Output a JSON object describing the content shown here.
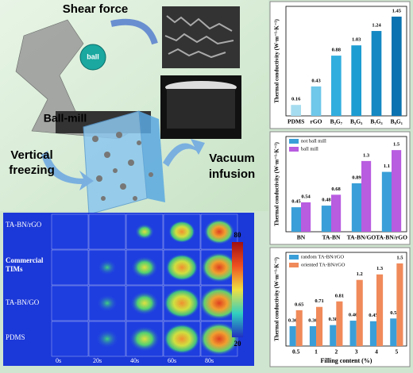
{
  "schematic": {
    "labels": [
      "Shear force",
      "ball",
      "Ball-mill",
      "Vertical",
      "freezing",
      "Vacuum",
      "infusion"
    ]
  },
  "thermal_map": {
    "samples": [
      "TA-BN/rGO",
      "Commercial",
      "TIMs",
      "TA-BN/GO",
      "PDMS"
    ],
    "times": [
      "0s",
      "20s",
      "40s",
      "60s",
      "80s"
    ],
    "colorbar": {
      "max": 80,
      "min": 20
    }
  },
  "chart_data": [
    {
      "type": "bar",
      "y_label": "Thermal conductivity (W·m⁻¹·K⁻¹)",
      "categories": [
        "PDMS",
        "rGO",
        "B₃G₇",
        "B₅G₅",
        "B₇G₃",
        "B₉G₁"
      ],
      "values": [
        0.16,
        0.43,
        0.88,
        1.03,
        1.24,
        1.45
      ],
      "colors": [
        "#a6dcf0",
        "#6fc7ea",
        "#31aede",
        "#1e9dd2",
        "#1488c2",
        "#0a72b0"
      ],
      "ylim": [
        0,
        1.6
      ]
    },
    {
      "type": "bar",
      "y_label": "Thermal conductivity (W·m⁻¹·K⁻¹)",
      "categories": [
        "BN",
        "TA-BN",
        "TA-BN/GO",
        "TA-BN/rGO"
      ],
      "series": [
        {
          "name": "not ball mill",
          "color": "#3a9fd8",
          "values": [
            0.45,
            0.48,
            0.89,
            1.1
          ]
        },
        {
          "name": "ball mill",
          "color": "#b85ce0",
          "values": [
            0.54,
            0.68,
            1.3,
            1.5
          ]
        }
      ],
      "legend": "upper left",
      "ylim": [
        0,
        1.75
      ]
    },
    {
      "type": "bar",
      "y_label": "Thermal conductivity (W·m⁻¹·K⁻¹)",
      "x_label": "Filling content (%)",
      "categories": [
        "0.5",
        "1",
        "2",
        "3",
        "4",
        "5"
      ],
      "series": [
        {
          "name": "random TA-BN/rGO",
          "color": "#3a9fd8",
          "values": [
            0.36,
            0.36,
            0.38,
            0.46,
            0.45,
            0.5
          ]
        },
        {
          "name": "oriented TA-BN/rGO",
          "color": "#f08a5a",
          "values": [
            0.65,
            0.71,
            0.81,
            1.2,
            1.3,
            1.5
          ]
        }
      ],
      "legend": "upper left",
      "ylim": [
        0,
        1.7
      ]
    }
  ]
}
